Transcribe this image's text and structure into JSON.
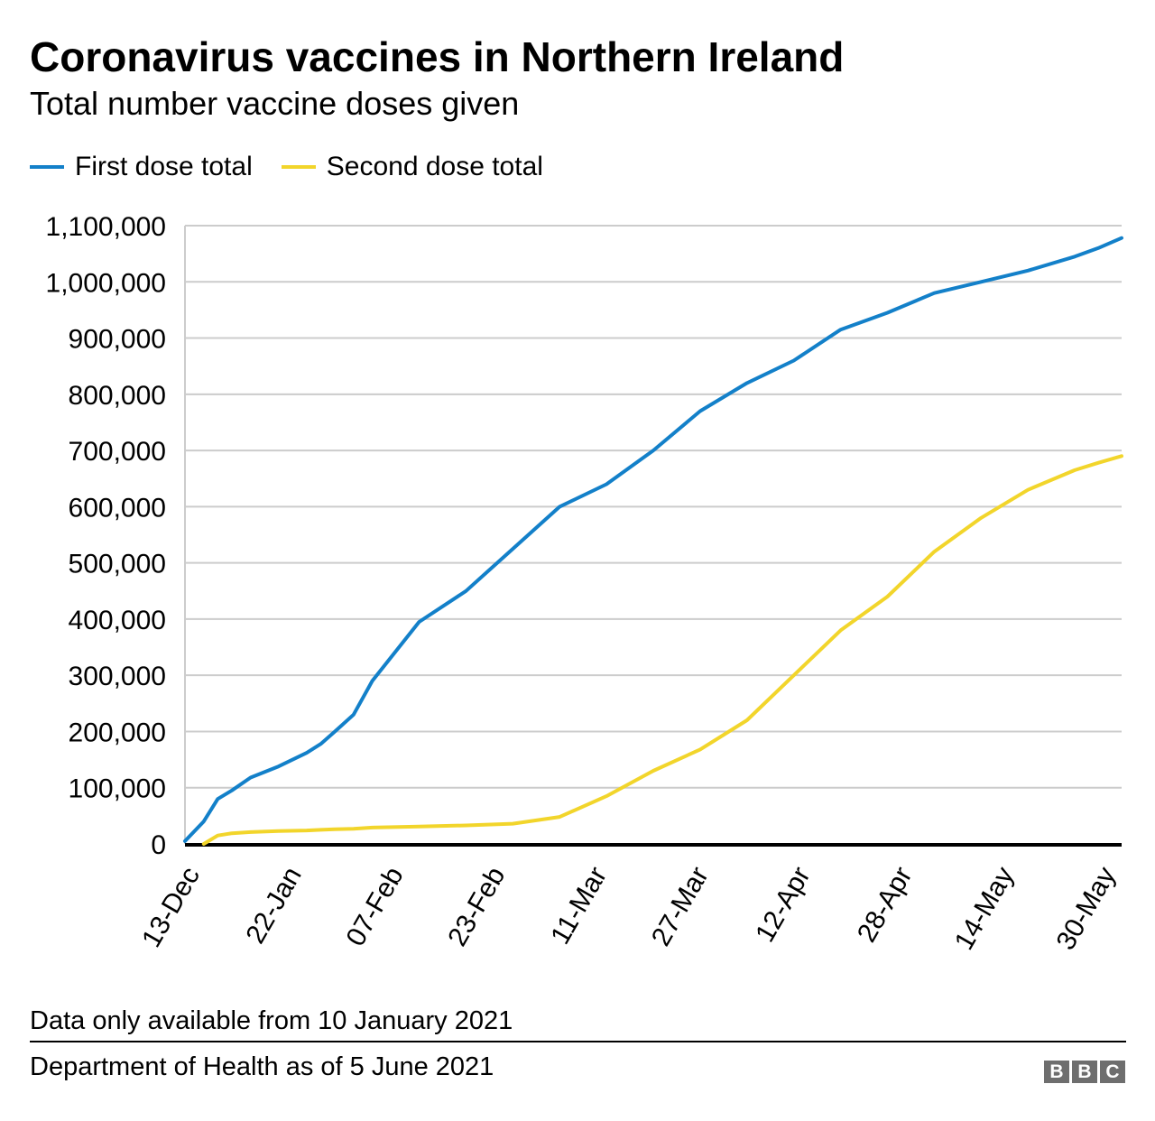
{
  "title": "Coronavirus vaccines in Northern Ireland",
  "subtitle": "Total number vaccine doses given",
  "legend": [
    {
      "label": "First dose total",
      "color": "#1380c9"
    },
    {
      "label": "Second dose total",
      "color": "#f2d52b"
    }
  ],
  "note": "Data only available from 10 January 2021",
  "source": "Department of Health as of 5 June 2021",
  "logo": [
    "B",
    "B",
    "C"
  ],
  "chart_data": {
    "type": "line",
    "title": "Coronavirus vaccines in Northern Ireland",
    "subtitle": "Total number vaccine doses given",
    "xlabel": "",
    "ylabel": "",
    "ylim": [
      0,
      1100000
    ],
    "yticks": [
      0,
      100000,
      200000,
      300000,
      400000,
      500000,
      600000,
      700000,
      800000,
      900000,
      1000000,
      1100000
    ],
    "ytick_labels": [
      "0",
      "100,000",
      "200,000",
      "300,000",
      "400,000",
      "500,000",
      "600,000",
      "700,000",
      "800,000",
      "900,000",
      "1,000,000",
      "1,100,000"
    ],
    "xtick_labels": [
      "13-Dec",
      "22-Jan",
      "07-Feb",
      "23-Feb",
      "11-Mar",
      "27-Mar",
      "12-Apr",
      "28-Apr",
      "14-May",
      "30-May"
    ],
    "grid": true,
    "legend_position": "top-left",
    "x_positions": [
      0,
      0.02,
      0.035,
      0.05,
      0.07,
      0.1,
      0.13,
      0.145,
      0.16,
      0.18,
      0.2,
      0.25,
      0.3,
      0.35,
      0.4,
      0.45,
      0.5,
      0.55,
      0.6,
      0.65,
      0.7,
      0.75,
      0.8,
      0.85,
      0.9,
      0.95,
      0.975,
      1.0
    ],
    "series": [
      {
        "name": "First dose total",
        "color": "#1380c9",
        "values": [
          5000,
          40000,
          80000,
          95000,
          118000,
          138000,
          162000,
          178000,
          200000,
          230000,
          290000,
          395000,
          450000,
          525000,
          600000,
          640000,
          700000,
          770000,
          820000,
          860000,
          915000,
          945000,
          980000,
          1000000,
          1020000,
          1045000,
          1060000,
          1078000
        ]
      },
      {
        "name": "Second dose total",
        "color": "#f2d52b",
        "values": [
          null,
          0,
          15000,
          19000,
          21000,
          23000,
          24000,
          25000,
          26000,
          27000,
          29000,
          31000,
          33000,
          36000,
          48000,
          85000,
          130000,
          168000,
          220000,
          300000,
          380000,
          440000,
          520000,
          580000,
          630000,
          665000,
          678000,
          690000
        ]
      }
    ]
  }
}
